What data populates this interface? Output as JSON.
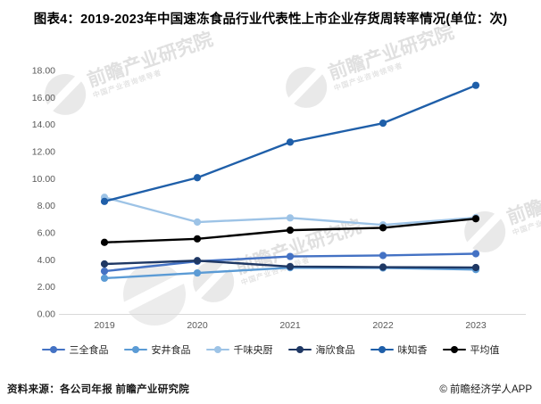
{
  "page": {
    "title": "图表4：2019-2023年中国速冻食品行业代表性上市企业存货周转率情况(单位：次)"
  },
  "watermark": {
    "text": "前瞻产业研究院",
    "subtext": "中国产业咨询领导者"
  },
  "chart_data": {
    "type": "line",
    "title": "图表4：2019-2023年中国速冻食品行业代表性上市企业存货周转率情况(单位：次)",
    "categories": [
      "2019",
      "2020",
      "2021",
      "2022",
      "2023"
    ],
    "series": [
      {
        "name": "三全食品",
        "color": "#4472C4",
        "values": [
          3.16,
          3.89,
          4.25,
          4.32,
          4.45
        ]
      },
      {
        "name": "安井食品",
        "color": "#5B9BD5",
        "values": [
          2.64,
          3.03,
          3.42,
          3.4,
          3.28
        ]
      },
      {
        "name": "千味央厨",
        "color": "#9DC3E6",
        "values": [
          8.62,
          6.79,
          7.1,
          6.58,
          7.12
        ]
      },
      {
        "name": "海欣食品",
        "color": "#1F3864",
        "values": [
          3.69,
          3.94,
          3.5,
          3.46,
          3.43
        ]
      },
      {
        "name": "味知香",
        "color": "#1F5FA9",
        "values": [
          8.32,
          10.07,
          12.7,
          14.1,
          16.9
        ]
      },
      {
        "name": "平均值",
        "color": "#000000",
        "values": [
          5.29,
          5.55,
          6.19,
          6.37,
          7.04
        ]
      }
    ],
    "ylim": [
      0,
      18
    ],
    "ytick_step": 2,
    "ytick_labels": [
      "0.00",
      "2.00",
      "4.00",
      "6.00",
      "8.00",
      "10.00",
      "12.00",
      "14.00",
      "16.00",
      "18.00"
    ],
    "xlabel": "",
    "ylabel": "",
    "grid": false,
    "legend_position": "bottom",
    "axis_color": "#d9d9d9",
    "tick_label_color": "#595959"
  },
  "footer": {
    "source": "资料来源：各公司年报 前瞻产业研究院",
    "copyright": "© 前瞻经济学人APP"
  }
}
